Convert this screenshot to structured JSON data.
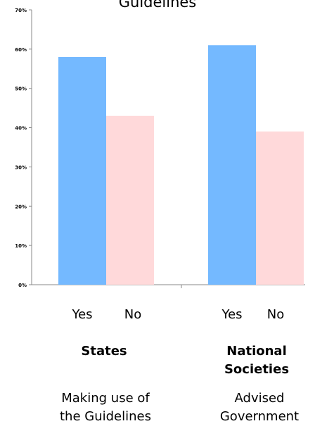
{
  "chart_data": {
    "type": "bar",
    "title": "Guidelines",
    "y_ticks": [
      "0%",
      "10%",
      "20%",
      "30%",
      "40%",
      "50%",
      "60%",
      "70%"
    ],
    "ylim": [
      0,
      70
    ],
    "grid": false,
    "legend": "none",
    "groups": [
      {
        "bars": [
          {
            "label": "Yes",
            "value": 58,
            "color": "#74b9ff"
          },
          {
            "label": "No",
            "value": 43,
            "color": "#ffd9da"
          }
        ],
        "category": [
          "States"
        ],
        "description": [
          "Making use of",
          "the Guidelines"
        ]
      },
      {
        "bars": [
          {
            "label": "Yes",
            "value": 61,
            "color": "#74b9ff"
          },
          {
            "label": "No",
            "value": 39,
            "color": "#ffd9da"
          }
        ],
        "category": [
          "National",
          "Societies"
        ],
        "description": [
          "Advised",
          "Government"
        ]
      }
    ]
  }
}
